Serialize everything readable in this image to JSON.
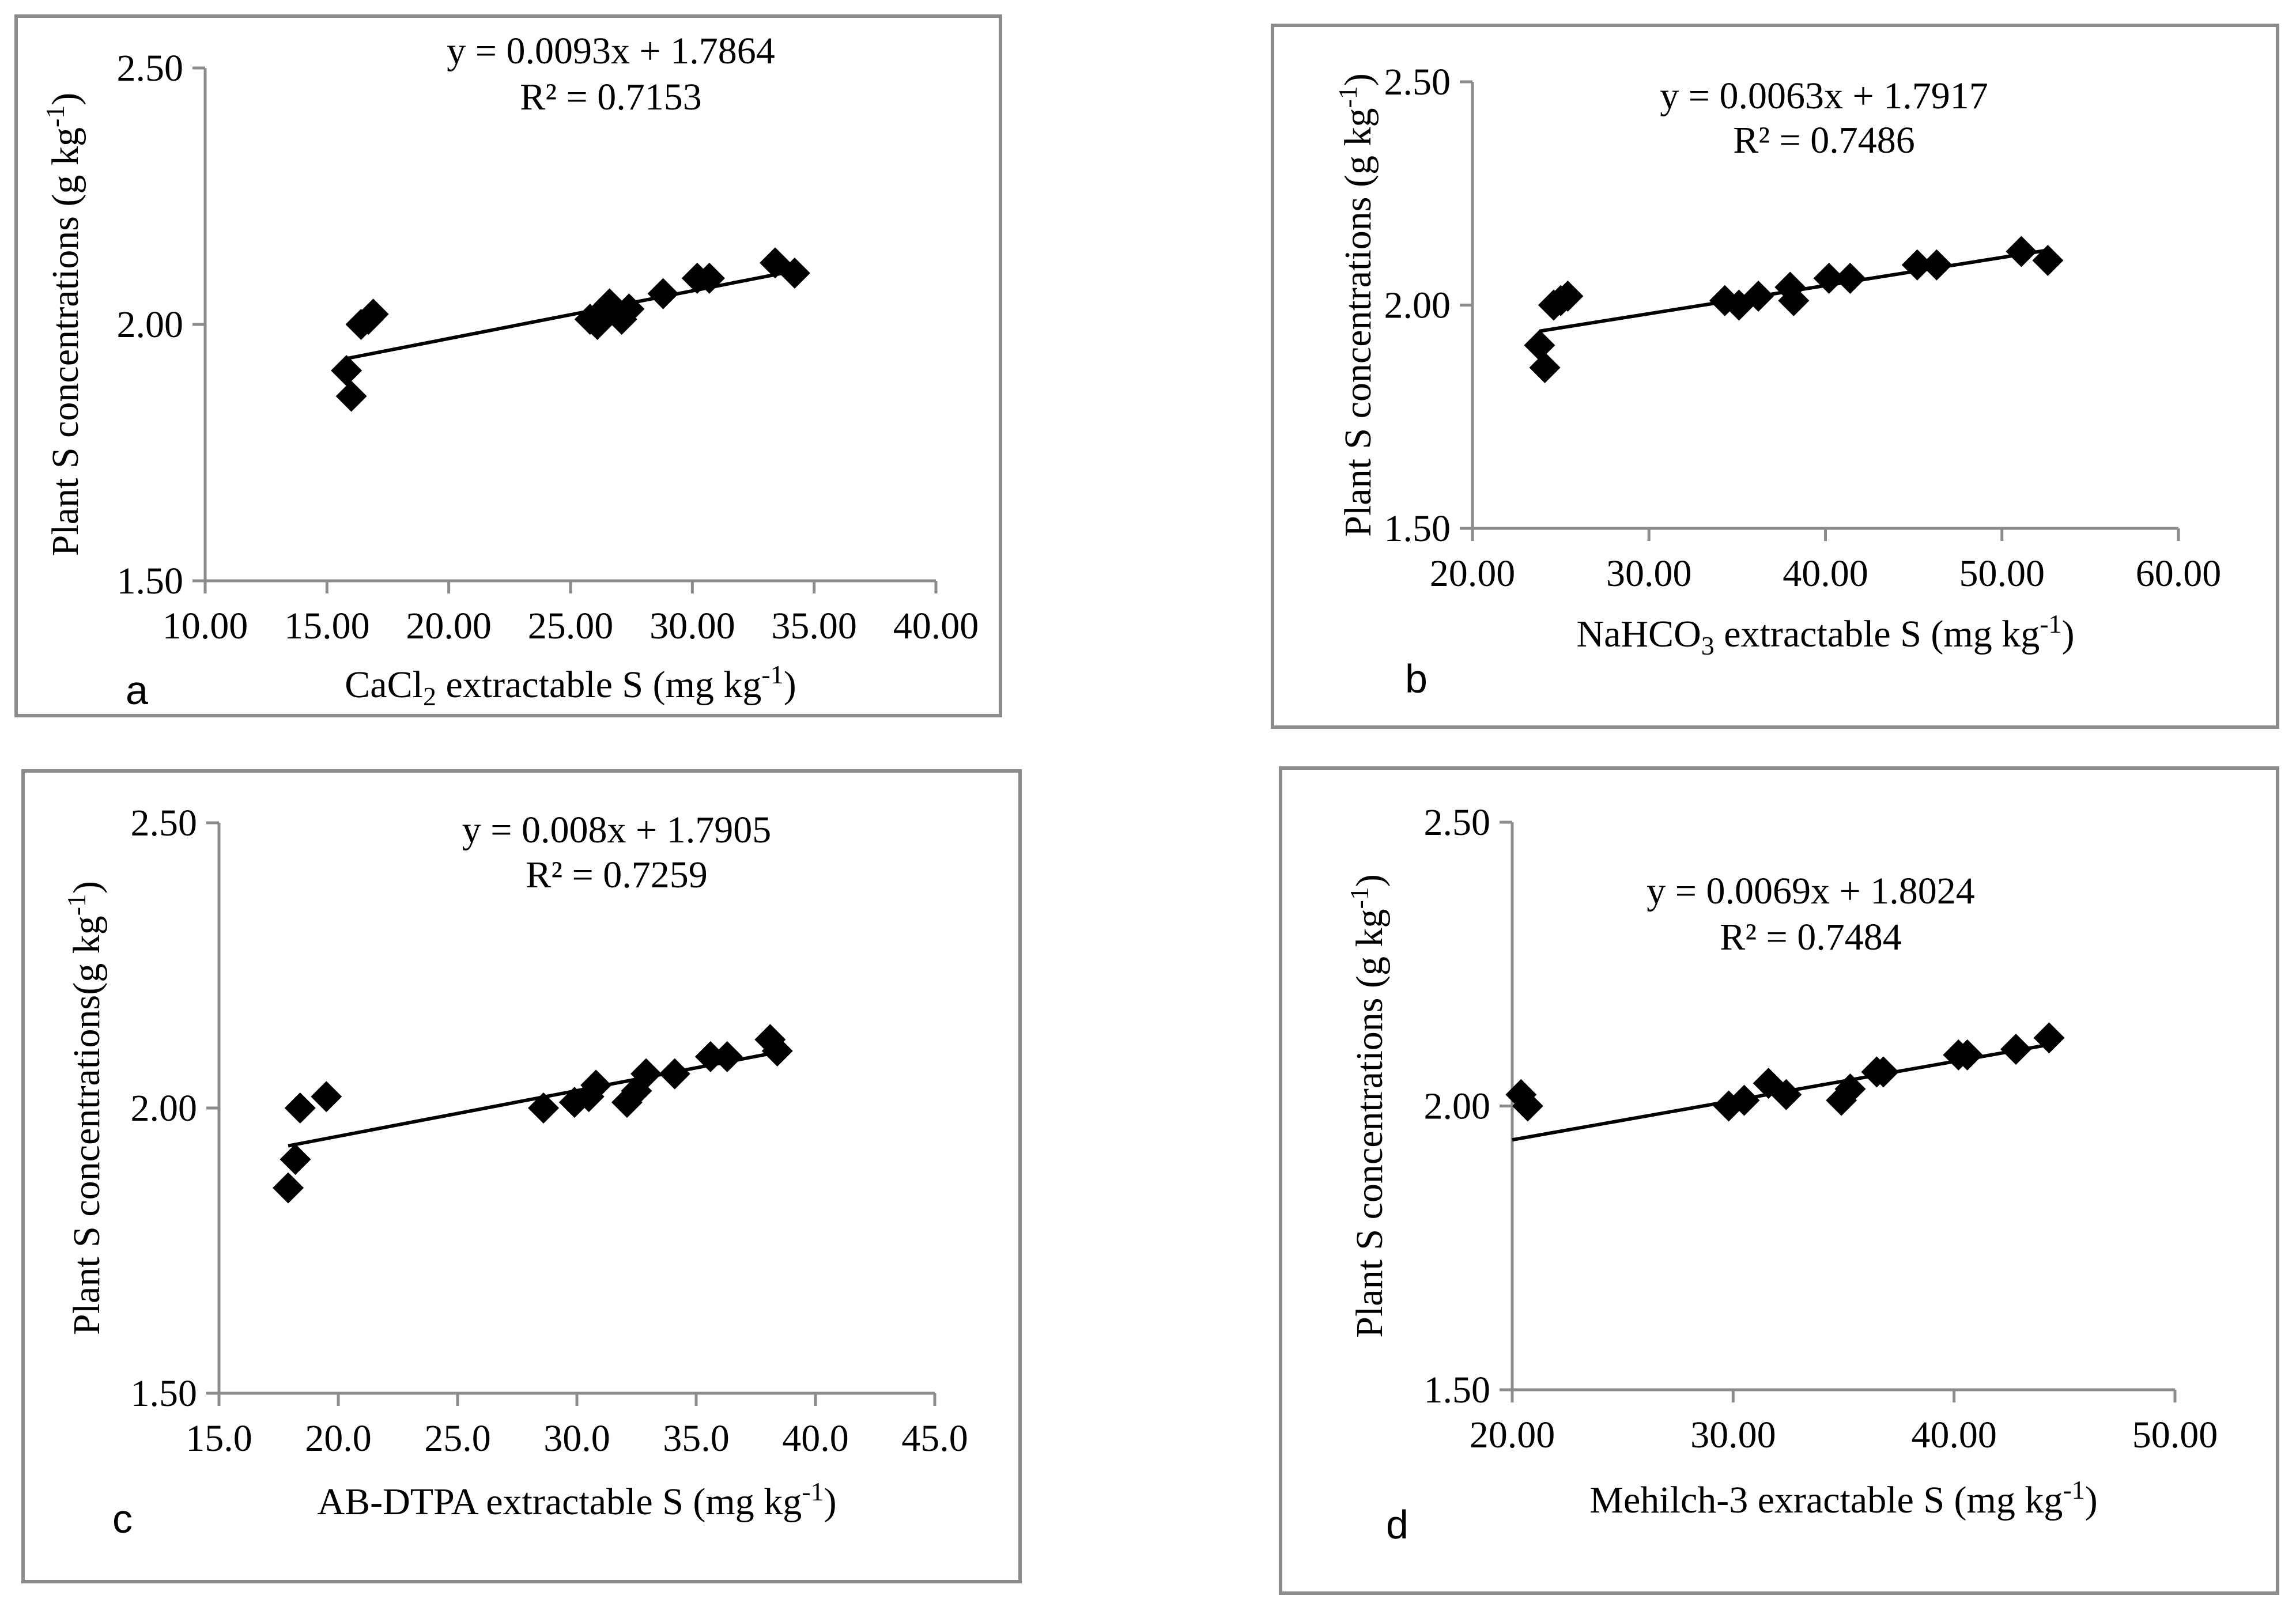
{
  "chart_data": [
    {
      "type": "scatter",
      "panel_label": "a",
      "title": "",
      "xlabel": {
        "pre": "CaCl",
        "sub": "2",
        "mid": " extractable S (mg kg",
        "sup": "-1",
        "post": ")"
      },
      "ylabel": {
        "pre": "Plant S concentrations (g kg",
        "sup": "-1",
        "post": ")"
      },
      "xlim": [
        10,
        40
      ],
      "ylim": [
        1.5,
        2.5
      ],
      "xticks": [
        "10.00",
        "15.00",
        "20.00",
        "25.00",
        "30.00",
        "35.00",
        "40.00"
      ],
      "yticks": [
        "1.50",
        "2.00",
        "2.50"
      ],
      "equation": "y = 0.0093x + 1.7864",
      "r_squared": "R² = 0.7153",
      "trendline": {
        "slope": 0.0093,
        "intercept": 1.7864,
        "x_range": [
          15.8,
          34.2
        ]
      },
      "series": [
        {
          "name": "data",
          "points": [
            [
              15.8,
              1.91
            ],
            [
              16.0,
              1.86
            ],
            [
              16.4,
              2.0
            ],
            [
              16.7,
              2.01
            ],
            [
              16.9,
              2.02
            ],
            [
              25.8,
              2.01
            ],
            [
              26.1,
              2.0
            ],
            [
              26.4,
              2.03
            ],
            [
              26.6,
              2.04
            ],
            [
              27.1,
              2.01
            ],
            [
              27.4,
              2.03
            ],
            [
              28.8,
              2.06
            ],
            [
              30.2,
              2.09
            ],
            [
              30.7,
              2.09
            ],
            [
              33.4,
              2.12
            ],
            [
              34.2,
              2.1
            ]
          ]
        }
      ]
    },
    {
      "type": "scatter",
      "panel_label": "b",
      "title": "",
      "xlabel": {
        "pre": "NaHCO",
        "sub": "3",
        "mid": " extractable S (mg kg",
        "sup": "-1",
        "post": ")"
      },
      "ylabel": {
        "pre": "Plant S concentrations (g kg",
        "sup": "-1",
        "post": ")"
      },
      "xlim": [
        20,
        60
      ],
      "ylim": [
        1.5,
        2.5
      ],
      "xticks": [
        "20.00",
        "30.00",
        "40.00",
        "50.00",
        "60.00"
      ],
      "yticks": [
        "1.50",
        "2.00",
        "2.50"
      ],
      "equation": "y = 0.0063x + 1.7917",
      "r_squared": "R² = 0.7486",
      "trendline": {
        "slope": 0.0063,
        "intercept": 1.7917,
        "x_range": [
          23.8,
          52.5
        ]
      },
      "series": [
        {
          "name": "data",
          "points": [
            [
              23.8,
              1.91
            ],
            [
              24.1,
              1.86
            ],
            [
              24.6,
              2.0
            ],
            [
              25.0,
              2.01
            ],
            [
              25.4,
              2.02
            ],
            [
              34.3,
              2.01
            ],
            [
              35.1,
              2.0
            ],
            [
              36.2,
              2.02
            ],
            [
              38.0,
              2.04
            ],
            [
              38.2,
              2.01
            ],
            [
              40.2,
              2.06
            ],
            [
              41.4,
              2.06
            ],
            [
              45.2,
              2.09
            ],
            [
              46.3,
              2.09
            ],
            [
              51.1,
              2.12
            ],
            [
              52.6,
              2.1
            ]
          ]
        }
      ]
    },
    {
      "type": "scatter",
      "panel_label": "c",
      "title": "",
      "xlabel": {
        "pre": "AB-DTPA extractable S (mg kg",
        "sup": "-1",
        "post": ")"
      },
      "ylabel": {
        "pre": "Plant  S concentrations(g kg",
        "sup": "-1",
        "post": ")"
      },
      "xlim": [
        15,
        45
      ],
      "ylim": [
        1.5,
        2.5
      ],
      "xticks": [
        "15.0",
        "20.0",
        "25.0",
        "30.0",
        "35.0",
        "40.0",
        "45.0"
      ],
      "yticks": [
        "1.50",
        "2.00",
        "2.50"
      ],
      "equation": "y = 0.008x + 1.7905",
      "r_squared": "R² = 0.7259",
      "trendline": {
        "slope": 0.008,
        "intercept": 1.7905,
        "x_range": [
          17.9,
          38.4
        ]
      },
      "series": [
        {
          "name": "data",
          "points": [
            [
              17.9,
              1.86
            ],
            [
              18.2,
              1.91
            ],
            [
              18.4,
              2.0
            ],
            [
              19.5,
              2.02
            ],
            [
              28.6,
              2.0
            ],
            [
              29.9,
              2.01
            ],
            [
              30.5,
              2.02
            ],
            [
              30.8,
              2.04
            ],
            [
              32.1,
              2.01
            ],
            [
              32.5,
              2.03
            ],
            [
              32.9,
              2.06
            ],
            [
              34.1,
              2.06
            ],
            [
              35.6,
              2.09
            ],
            [
              36.3,
              2.09
            ],
            [
              38.1,
              2.12
            ],
            [
              38.4,
              2.1
            ]
          ]
        }
      ]
    },
    {
      "type": "scatter",
      "panel_label": "d",
      "title": "",
      "xlabel": {
        "pre": "Mehilch-3 exractable S (mg kg",
        "sup": "-1",
        "post": ")"
      },
      "ylabel": {
        "pre": "Plant S concentrations (g kg",
        "sup": "-1",
        "post": ")"
      },
      "xlim": [
        20,
        50
      ],
      "ylim": [
        1.5,
        2.5
      ],
      "xticks": [
        "20.00",
        "30.00",
        "40.00",
        "50.00"
      ],
      "yticks": [
        "1.50",
        "2.00",
        "2.50"
      ],
      "equation": "y = 0.0069x + 1.8024",
      "r_squared": "R² = 0.7484",
      "trendline": {
        "slope": 0.0069,
        "intercept": 1.8024,
        "x_range": [
          20.0,
          44.3
        ]
      },
      "series": [
        {
          "name": "data",
          "points": [
            [
              20.4,
              2.02
            ],
            [
              20.7,
              2.0
            ],
            [
              29.8,
              2.0
            ],
            [
              30.5,
              2.01
            ],
            [
              31.6,
              2.04
            ],
            [
              32.4,
              2.02
            ],
            [
              34.9,
              2.01
            ],
            [
              35.3,
              2.03
            ],
            [
              36.5,
              2.06
            ],
            [
              36.8,
              2.06
            ],
            [
              40.2,
              2.09
            ],
            [
              40.6,
              2.09
            ],
            [
              42.8,
              2.1
            ],
            [
              44.3,
              2.12
            ]
          ]
        }
      ]
    }
  ]
}
